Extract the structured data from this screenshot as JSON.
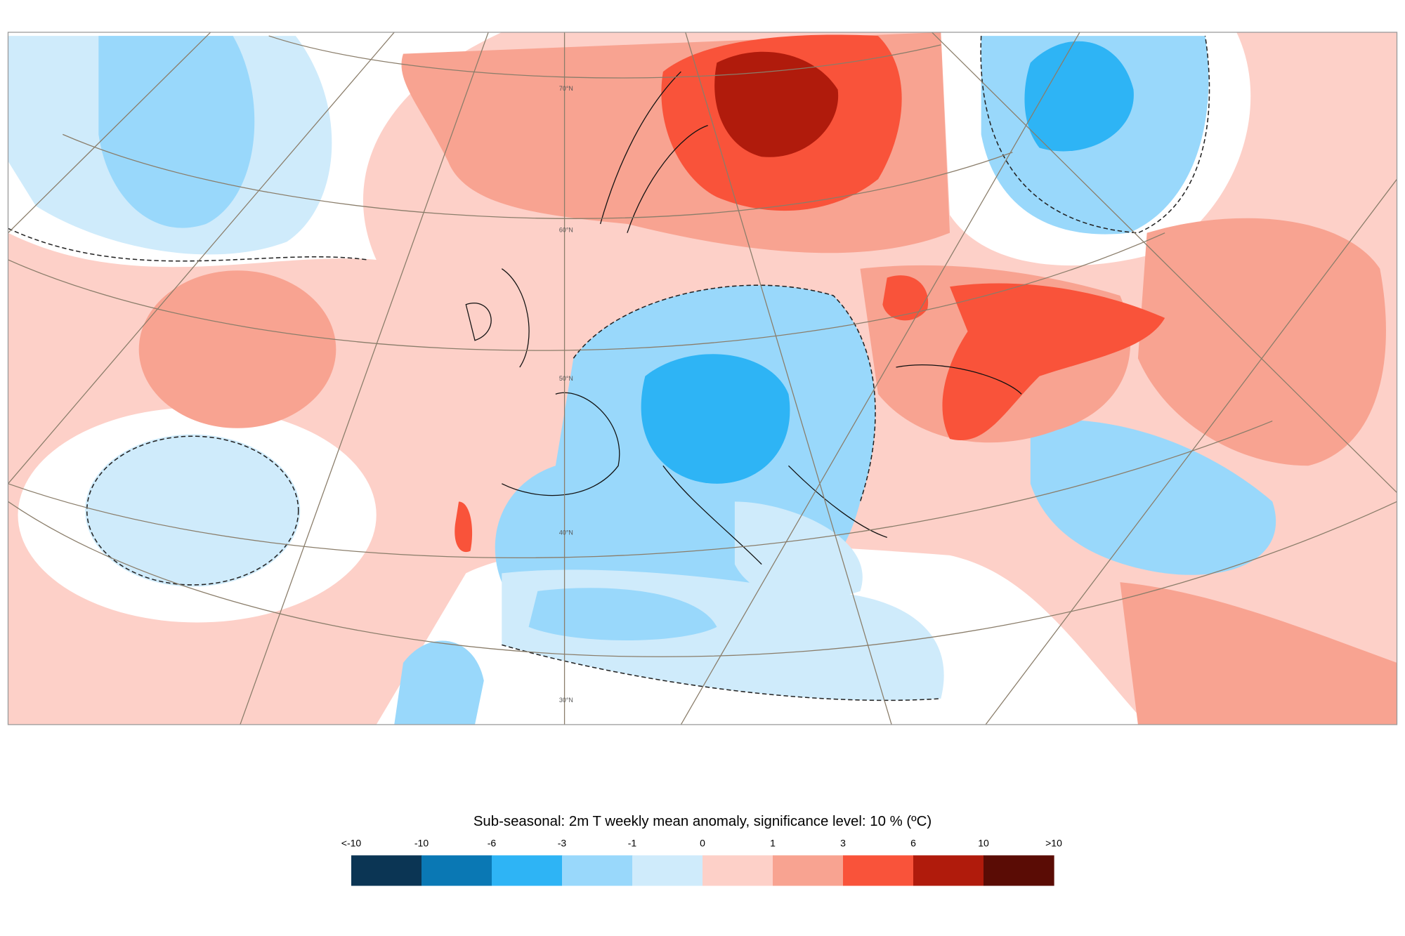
{
  "map": {
    "lat_labels": [
      "70°N",
      "60°N",
      "50°N",
      "40°N",
      "30°N"
    ]
  },
  "legend": {
    "title": "Sub-seasonal: 2m T weekly mean anomaly, significance level: 10 % (ºC)",
    "labels": [
      "<-10",
      "-10",
      "-6",
      "-3",
      "-1",
      "0",
      "1",
      "3",
      "6",
      "10",
      ">10"
    ],
    "colors": [
      "#0b3554",
      "#0a78b4",
      "#2eb4f5",
      "#99d8fb",
      "#cfebfb",
      "#fdd0c8",
      "#f8a391",
      "#f9533a",
      "#b01b0c",
      "#5a0c05"
    ]
  }
}
